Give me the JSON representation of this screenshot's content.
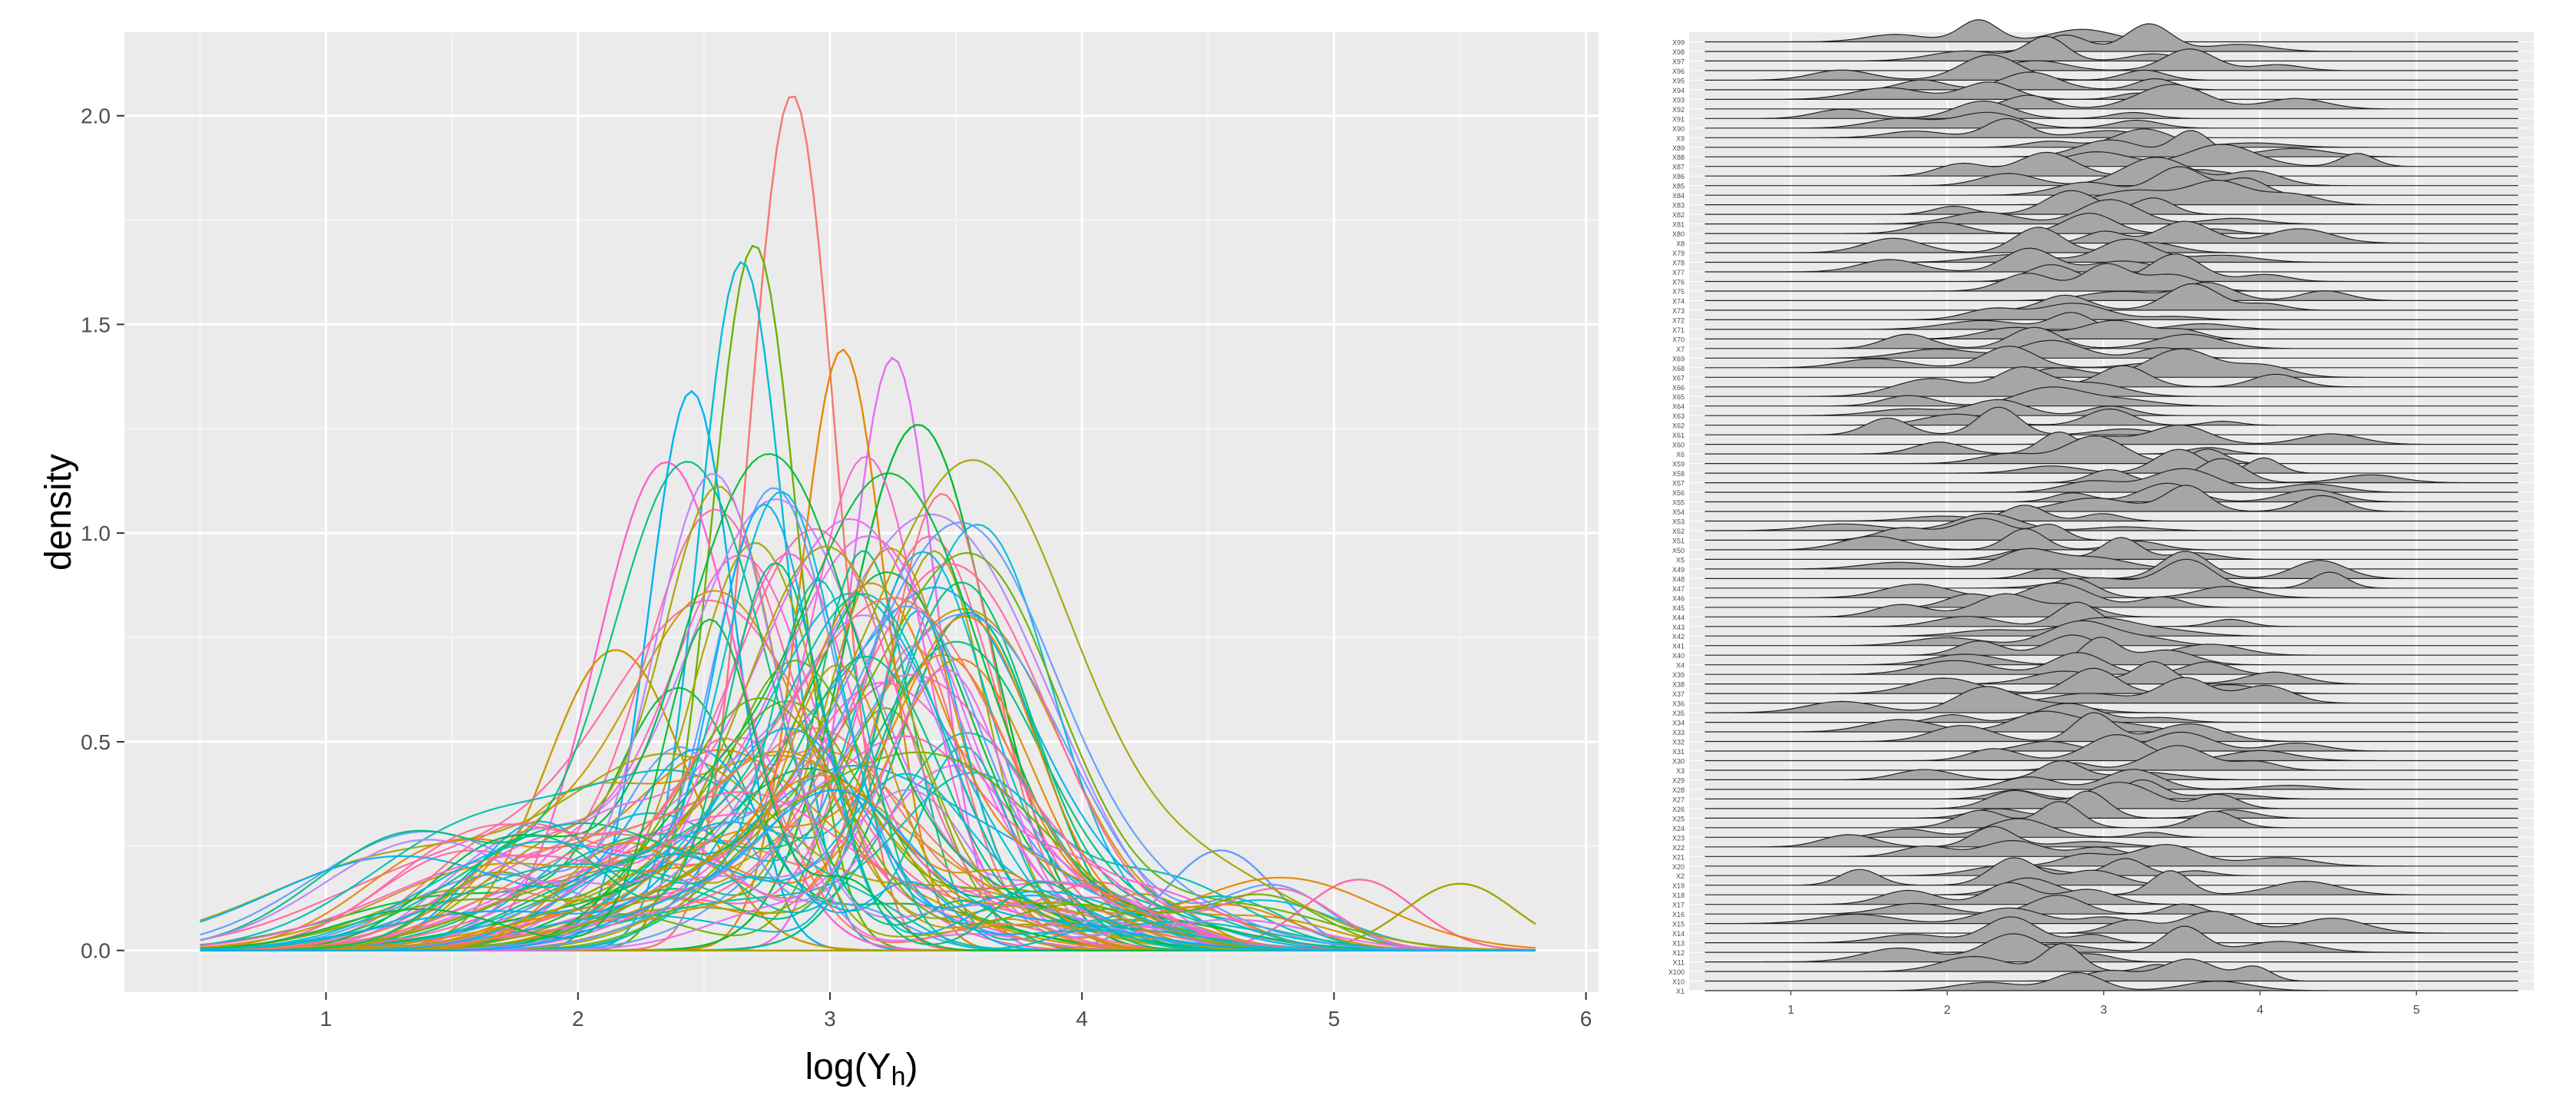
{
  "chart_data": [
    {
      "type": "line",
      "title": "",
      "xlabel": "log(Y",
      "xlabel_sub": "h",
      "xlabel_close": ")",
      "ylabel": "density",
      "xlim": [
        0.2,
        6.05
      ],
      "ylim": [
        -0.1,
        2.2
      ],
      "x_ticks": [
        1,
        2,
        3,
        4,
        5,
        6
      ],
      "x_tick_labels": [
        "1",
        "2",
        "3",
        "4",
        "5",
        "6"
      ],
      "y_ticks": [
        0.0,
        0.5,
        1.0,
        1.5,
        2.0
      ],
      "y_tick_labels": [
        "0.0",
        "0.5",
        "1.0",
        "1.5",
        "2.0"
      ],
      "grid": true,
      "panel_background": "#ebebeb",
      "legend": "none",
      "series_count": 100,
      "notable_peaks": [
        {
          "x": 2.85,
          "y": 2.05
        },
        {
          "x": 2.7,
          "y": 1.69
        },
        {
          "x": 2.65,
          "y": 1.65
        },
        {
          "x": 3.25,
          "y": 1.42
        },
        {
          "x": 3.05,
          "y": 1.44
        },
        {
          "x": 3.35,
          "y": 1.26
        },
        {
          "x": 2.45,
          "y": 1.34
        },
        {
          "x": 2.35,
          "y": 1.17
        },
        {
          "x": 2.15,
          "y": 0.72
        },
        {
          "x": 3.55,
          "y": 0.81
        },
        {
          "x": 4.55,
          "y": 0.24
        },
        {
          "x": 5.1,
          "y": 0.17
        },
        {
          "x": 5.5,
          "y": 0.16
        }
      ],
      "palette": [
        "#F8766D",
        "#E58700",
        "#C99800",
        "#A3A500",
        "#6BB100",
        "#00BA38",
        "#00BF7D",
        "#00C0AF",
        "#00BCD8",
        "#00B0F6",
        "#619CFF",
        "#B983FF",
        "#E76BF3",
        "#FD61D1",
        "#FF67A4"
      ]
    },
    {
      "type": "ridgeline",
      "title": "",
      "xlim": [
        0.35,
        5.75
      ],
      "x_ticks": [
        1,
        2,
        3,
        4,
        5
      ],
      "x_tick_labels": [
        "1",
        "2",
        "3",
        "4",
        "5"
      ],
      "categories": [
        "X99",
        "X98",
        "X97",
        "X96",
        "X95",
        "X94",
        "X93",
        "X92",
        "X91",
        "X90",
        "X9",
        "X89",
        "X88",
        "X87",
        "X86",
        "X85",
        "X84",
        "X83",
        "X82",
        "X81",
        "X80",
        "X8",
        "X79",
        "X78",
        "X77",
        "X76",
        "X75",
        "X74",
        "X73",
        "X72",
        "X71",
        "X70",
        "X7",
        "X69",
        "X68",
        "X67",
        "X66",
        "X65",
        "X64",
        "X63",
        "X62",
        "X61",
        "X60",
        "X6",
        "X59",
        "X58",
        "X57",
        "X56",
        "X55",
        "X54",
        "X53",
        "X52",
        "X51",
        "X50",
        "X5",
        "X49",
        "X48",
        "X47",
        "X46",
        "X45",
        "X44",
        "X43",
        "X42",
        "X41",
        "X40",
        "X4",
        "X39",
        "X38",
        "X37",
        "X36",
        "X35",
        "X34",
        "X33",
        "X32",
        "X31",
        "X30",
        "X3",
        "X29",
        "X28",
        "X27",
        "X26",
        "X25",
        "X24",
        "X23",
        "X22",
        "X21",
        "X20",
        "X2",
        "X19",
        "X18",
        "X17",
        "X16",
        "X15",
        "X14",
        "X13",
        "X12",
        "X11",
        "X100",
        "X10",
        "X1"
      ],
      "fill": "#a6a6a6",
      "panel_background": "#ebebeb",
      "grid": true
    }
  ]
}
